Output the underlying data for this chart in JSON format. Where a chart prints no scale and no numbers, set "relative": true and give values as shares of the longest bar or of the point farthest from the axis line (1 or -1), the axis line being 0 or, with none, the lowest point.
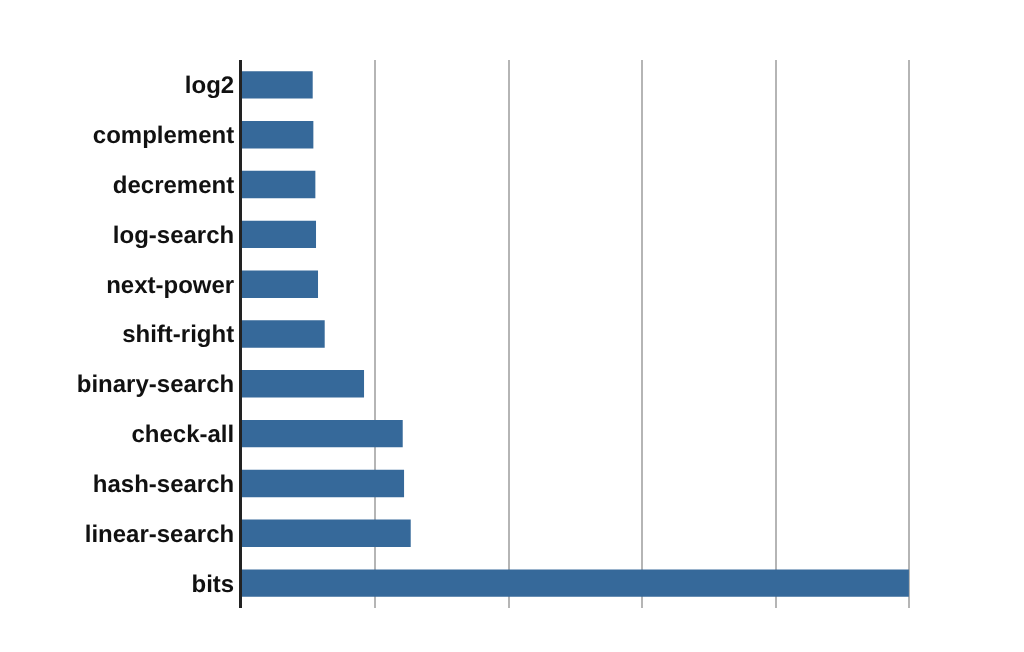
{
  "chart_data": {
    "type": "bar",
    "orientation": "horizontal",
    "relative": true,
    "grid": "x",
    "color": "#36699a",
    "categories": [
      "log2",
      "complement",
      "decrement",
      "log-search",
      "next-power",
      "shift-right",
      "binary-search",
      "check-all",
      "hash-search",
      "linear-search",
      "bits"
    ],
    "values": [
      0.106,
      0.107,
      0.11,
      0.111,
      0.114,
      0.124,
      0.183,
      0.241,
      0.243,
      0.253,
      1
    ]
  }
}
